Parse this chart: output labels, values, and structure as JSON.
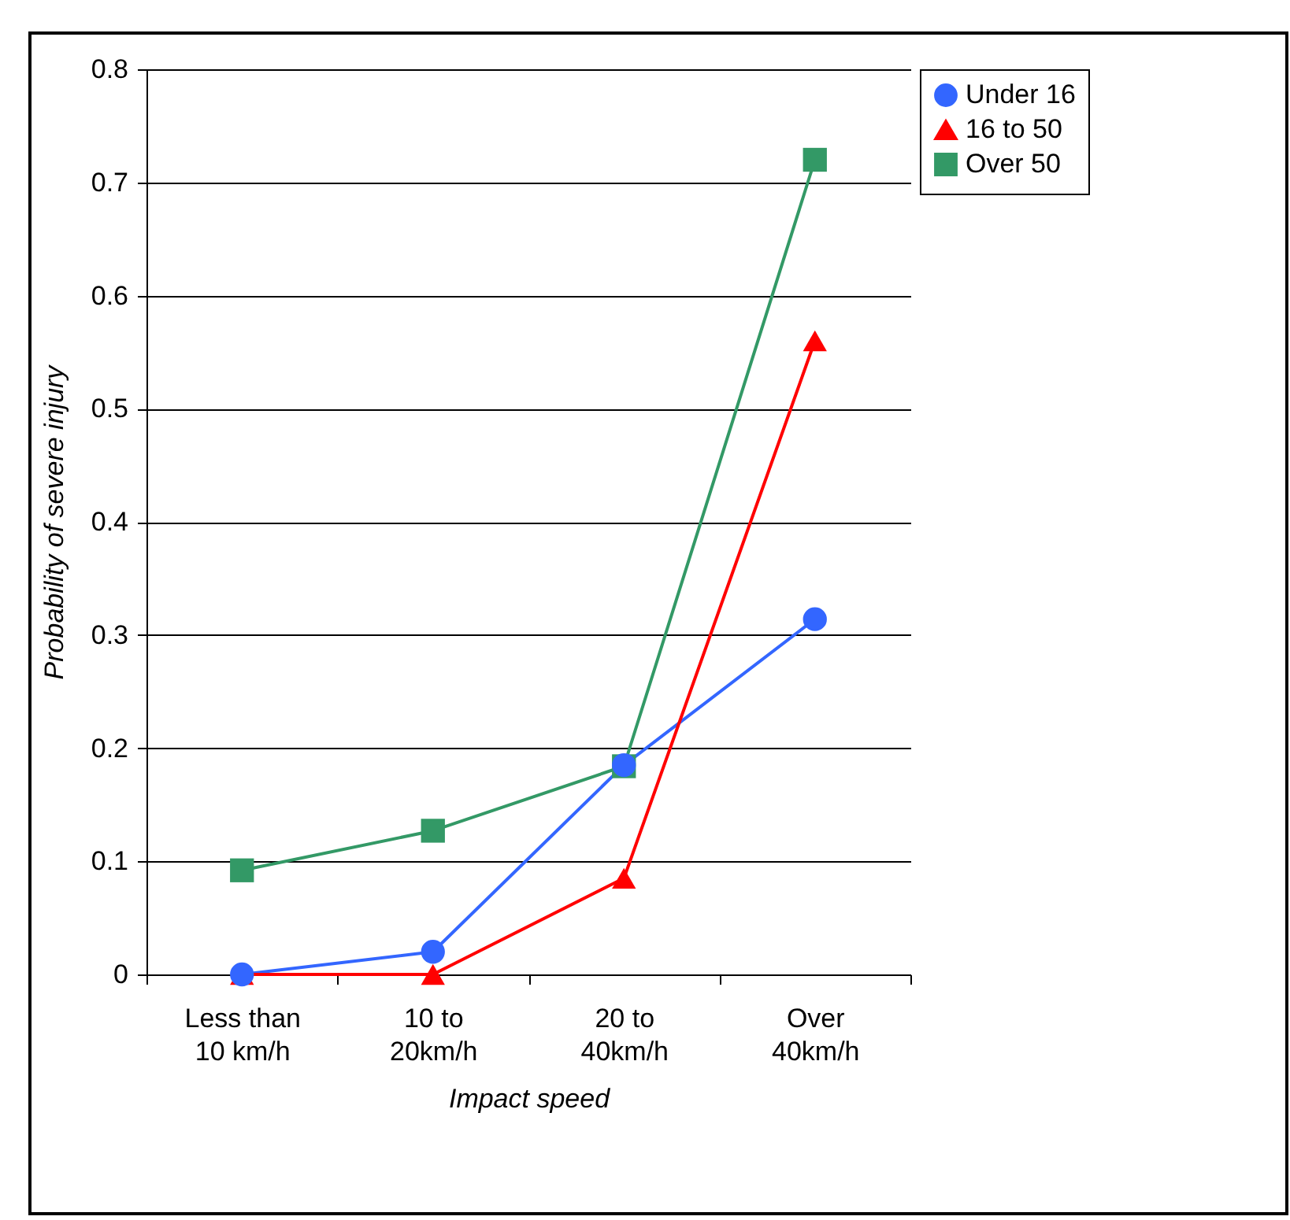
{
  "chart_data": {
    "type": "line",
    "xlabel": "Impact speed",
    "ylabel": "Probability of severe injury",
    "categories": [
      "Less than 10 km/h",
      "10 to 20km/h",
      "20 to 40km/h",
      "Over 40km/h"
    ],
    "series": [
      {
        "name": "Under 16",
        "color": "#3366ff",
        "marker": "circle",
        "values": [
          0,
          0.02,
          0.185,
          0.314
        ]
      },
      {
        "name": "16 to 50",
        "color": "#ff0000",
        "marker": "triangle",
        "values": [
          0,
          0,
          0.085,
          0.56
        ]
      },
      {
        "name": "Over 50",
        "color": "#339966",
        "marker": "square",
        "values": [
          0.092,
          0.127,
          0.184,
          0.72
        ]
      }
    ],
    "ylim": [
      0,
      0.8
    ],
    "yticks": [
      0,
      0.1,
      0.2,
      0.3,
      0.4,
      0.5,
      0.6,
      0.7,
      0.8
    ],
    "grid": "y",
    "legend": "right",
    "line_style": "solid"
  }
}
